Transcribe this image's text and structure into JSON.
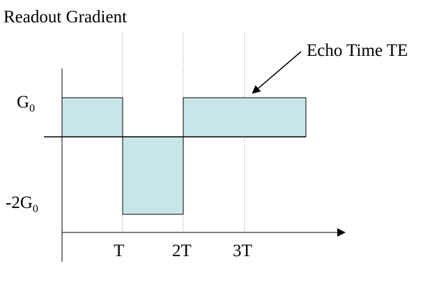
{
  "diagram": {
    "title": "Readout Gradient",
    "annotation": "Echo Time TE",
    "y_labels": {
      "top": {
        "base": "G",
        "sub": "0"
      },
      "bottom": {
        "base": "-2G",
        "sub": "0"
      }
    },
    "x_ticks": [
      "T",
      "2T",
      "3T"
    ],
    "colors": {
      "pulse_fill": "#c8e6e8",
      "stroke": "#000000",
      "guide": "#808080"
    }
  }
}
